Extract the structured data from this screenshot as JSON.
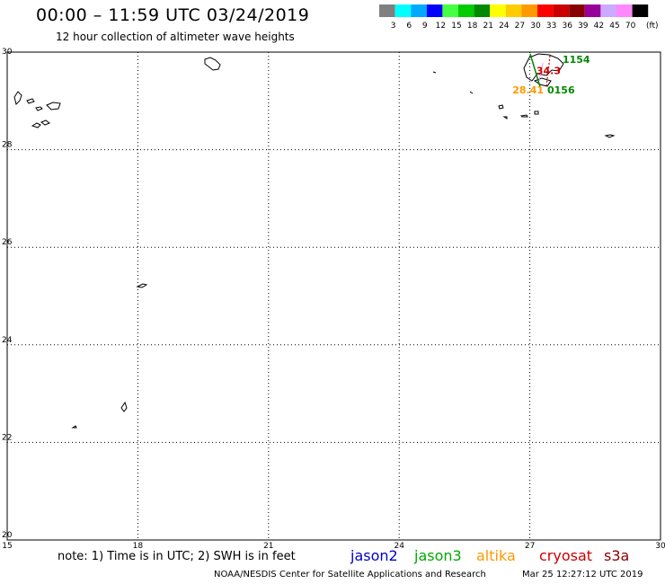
{
  "title": "00:00 – 11:59 UTC 03/24/2019",
  "subtitle": "12 hour collection of altimeter wave heights",
  "colorbar": {
    "unit": "(ft)",
    "bins": [
      {
        "label": "3",
        "color": "#808080"
      },
      {
        "label": "6",
        "color": "#00ffff"
      },
      {
        "label": "9",
        "color": "#00aaff"
      },
      {
        "label": "12",
        "color": "#0000ff"
      },
      {
        "label": "15",
        "color": "#44ff44"
      },
      {
        "label": "18",
        "color": "#00cc00"
      },
      {
        "label": "21",
        "color": "#008800"
      },
      {
        "label": "24",
        "color": "#ffff00"
      },
      {
        "label": "27",
        "color": "#ffcc00"
      },
      {
        "label": "30",
        "color": "#ff9900"
      },
      {
        "label": "33",
        "color": "#ff0000"
      },
      {
        "label": "36",
        "color": "#cc0000"
      },
      {
        "label": "39",
        "color": "#880000"
      },
      {
        "label": "42",
        "color": "#990099"
      },
      {
        "label": "45",
        "color": "#ccaaff"
      },
      {
        "label": "70",
        "color": "#ff88ff"
      },
      {
        "label": "",
        "color": "#000000"
      }
    ]
  },
  "map": {
    "lon_range": [
      15,
      30
    ],
    "lat_range": [
      20,
      30
    ],
    "x_ticks": [
      "15",
      "18",
      "21",
      "24",
      "27",
      "30"
    ],
    "y_ticks": [
      "30",
      "28",
      "26",
      "24",
      "22",
      "20"
    ],
    "grid": "dotted"
  },
  "observations": [
    {
      "text": "1154",
      "lon": 27.75,
      "lat": 29.78,
      "color": "#008800"
    },
    {
      "text": "34.3",
      "lon": 27.15,
      "lat": 29.55,
      "color": "#cc0000"
    },
    {
      "text": "28.41",
      "lon": 26.6,
      "lat": 29.15,
      "color": "#ff9900"
    },
    {
      "text": "0156",
      "lon": 27.4,
      "lat": 29.15,
      "color": "#008800"
    }
  ],
  "note": "note:  1) Time is in UTC;  2) SWH is in feet",
  "satellites": [
    {
      "name": "jason2",
      "color": "#0000cc"
    },
    {
      "name": "jason3",
      "color": "#00aa00"
    },
    {
      "name": "altika",
      "color": "#ff9900"
    },
    {
      "name": "cryosat",
      "color": "#cc0000"
    },
    {
      "name": "s3a",
      "color": "#880000"
    }
  ],
  "footer_left": "NOAA/NESDIS Center for Satellite Applications and Research",
  "footer_right": "Mar 25 12:27:12 UTC 2019"
}
